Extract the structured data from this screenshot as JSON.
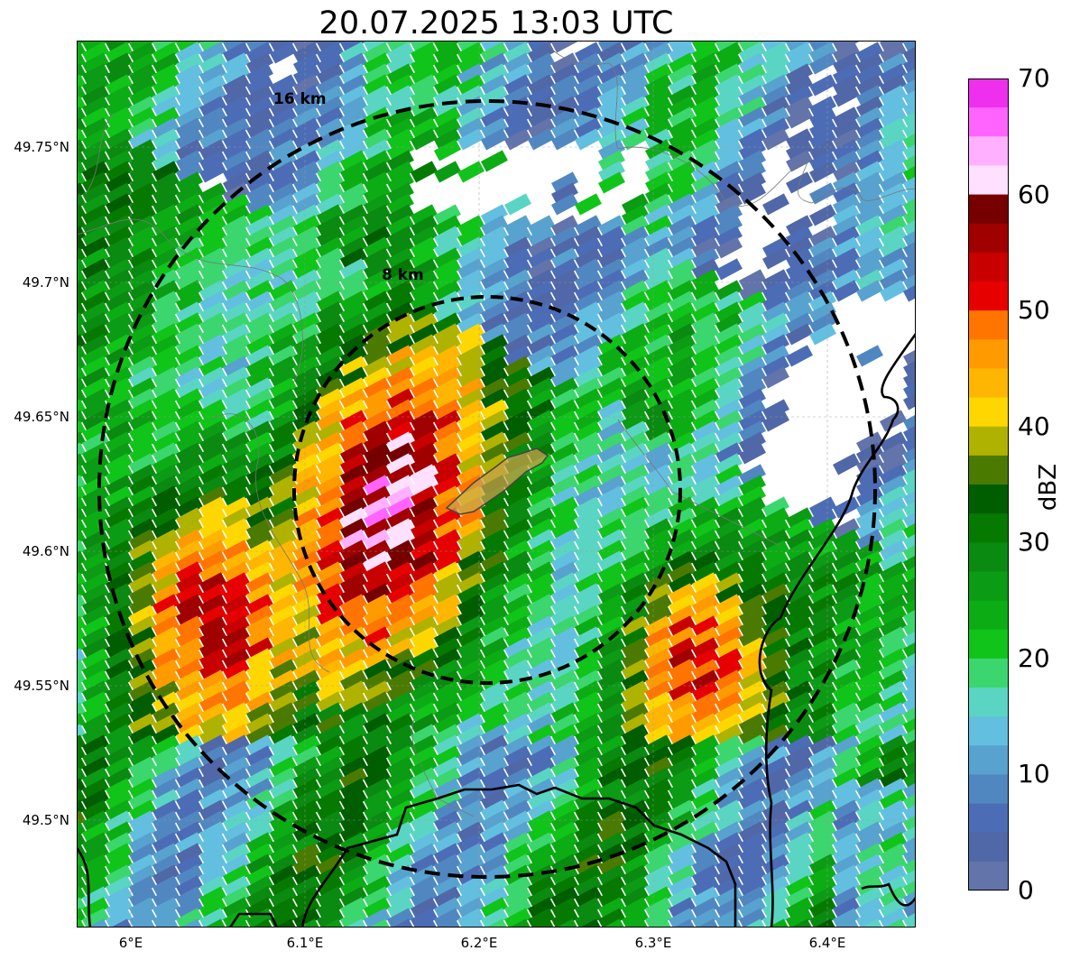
{
  "title": "20.07.2025 13:03 UTC",
  "map": {
    "lat_ticks": [
      "49.75°N",
      "49.7°N",
      "49.65°N",
      "49.6°N",
      "49.55°N",
      "49.5°N"
    ],
    "lon_ticks": [
      "6°E",
      "6.1°E",
      "6.2°E",
      "6.3°E",
      "6.4°E"
    ],
    "range_rings": [
      {
        "label": "16 km",
        "radius_km": 16
      },
      {
        "label": "8 km",
        "radius_km": 8
      }
    ],
    "radar_field": "reflectivity",
    "highlight_color": "#c9a24a"
  },
  "colorbar": {
    "label": "dBZ",
    "tick_labels": [
      "70",
      "60",
      "50",
      "40",
      "30",
      "20",
      "10",
      "0"
    ],
    "colors_top_to_bottom": [
      "#ee30ee",
      "#ff64ff",
      "#ffb1ff",
      "#ffe0ff",
      "#760000",
      "#a00000",
      "#c80000",
      "#e60000",
      "#ff7500",
      "#ff9b00",
      "#ffb600",
      "#ffd700",
      "#b0b200",
      "#4b7a00",
      "#005d00",
      "#067a00",
      "#0a8a10",
      "#0b9b14",
      "#0cac15",
      "#10c41a",
      "#3bd66e",
      "#5ad5c3",
      "#63bfe0",
      "#58a2cf",
      "#5187c1",
      "#4c6db5",
      "#5068a8",
      "#6274aa"
    ]
  }
}
